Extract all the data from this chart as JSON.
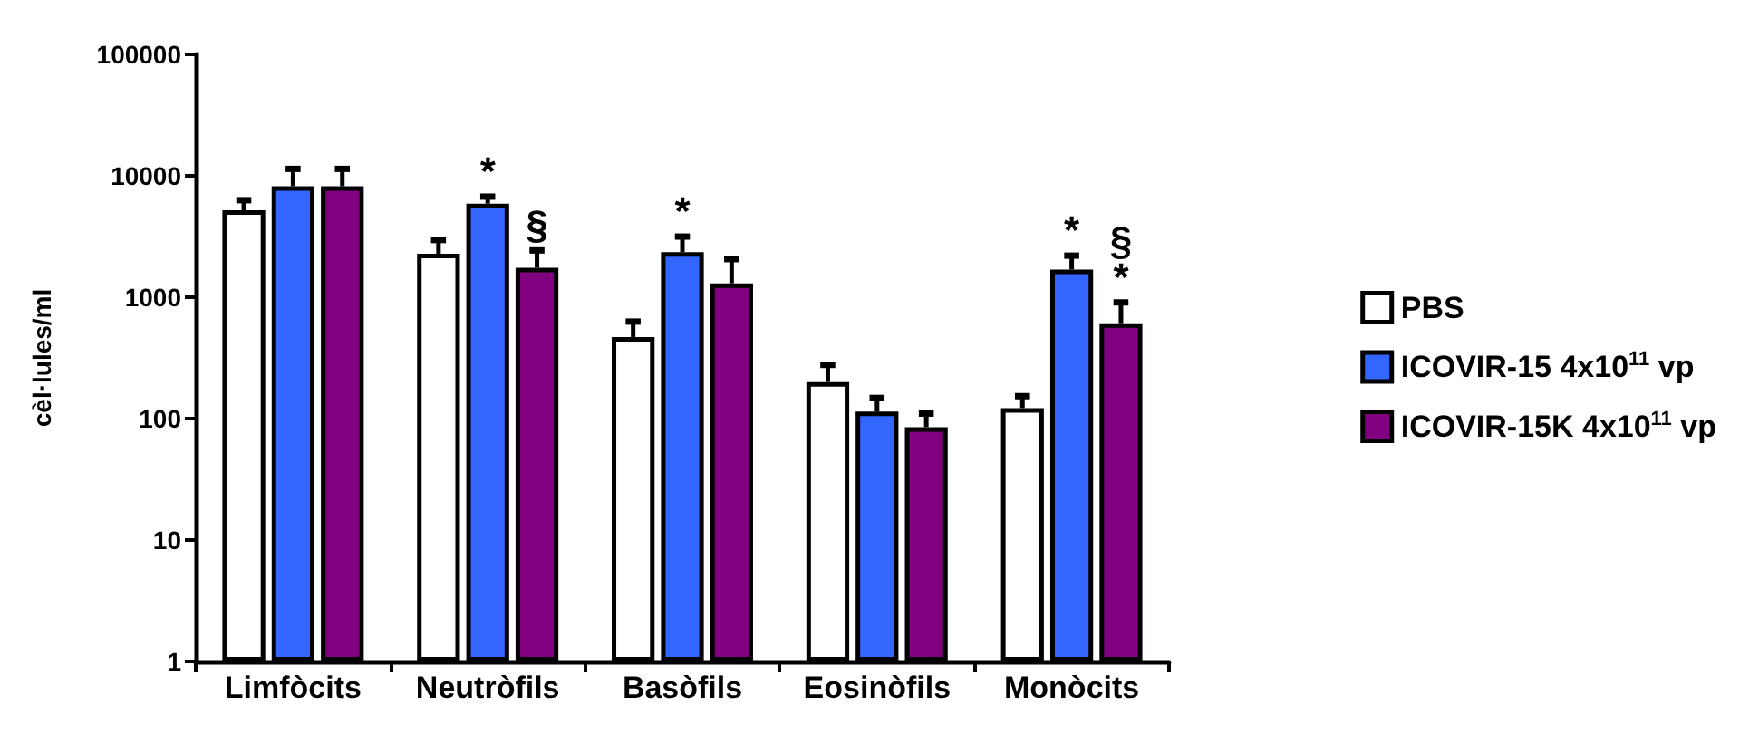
{
  "chart_data": {
    "type": "bar",
    "ylabel": "cèl·lules/ml",
    "categories": [
      "Limfòcits",
      "Neutròfils",
      "Basòfils",
      "Eosinòfils",
      "Monòcits"
    ],
    "series": [
      {
        "name": "PBS",
        "color": "#ffffff",
        "values": [
          5200,
          2280,
          470,
          200,
          122
        ],
        "errors": [
          [
            5200,
            6300
          ],
          [
            2280,
            2960
          ],
          [
            470,
            630
          ],
          [
            200,
            277
          ],
          [
            122,
            153
          ]
        ]
      },
      {
        "name": "ICOVIR-15 4x10$^{11}$ vp",
        "color": "#3366ff",
        "values": [
          8200,
          5900,
          2350,
          114,
          1690
        ],
        "errors": [
          [
            8200,
            11400
          ],
          [
            5900,
            6740
          ],
          [
            2350,
            3160
          ],
          [
            114,
            148
          ],
          [
            1690,
            2200
          ]
        ],
        "value_labels": [
          null,
          "*",
          "*",
          null,
          "*"
        ]
      },
      {
        "name": "ICOVIR-15K 4x10$^{11}$ vp",
        "color": "#800080",
        "values": [
          8200,
          1750,
          1300,
          85,
          610
        ],
        "errors": [
          [
            8200,
            11400
          ],
          [
            1750,
            2430
          ],
          [
            1300,
            2060
          ],
          [
            85,
            110
          ],
          [
            610,
            906
          ]
        ],
        "value_labels": [
          null,
          "§",
          null,
          null,
          "§\n*"
        ]
      }
    ],
    "log": "y",
    "ylim": [
      1,
      100000
    ],
    "yticks": [
      1,
      10,
      100,
      1000,
      10000,
      100000
    ],
    "grid": false,
    "legend": "right"
  }
}
